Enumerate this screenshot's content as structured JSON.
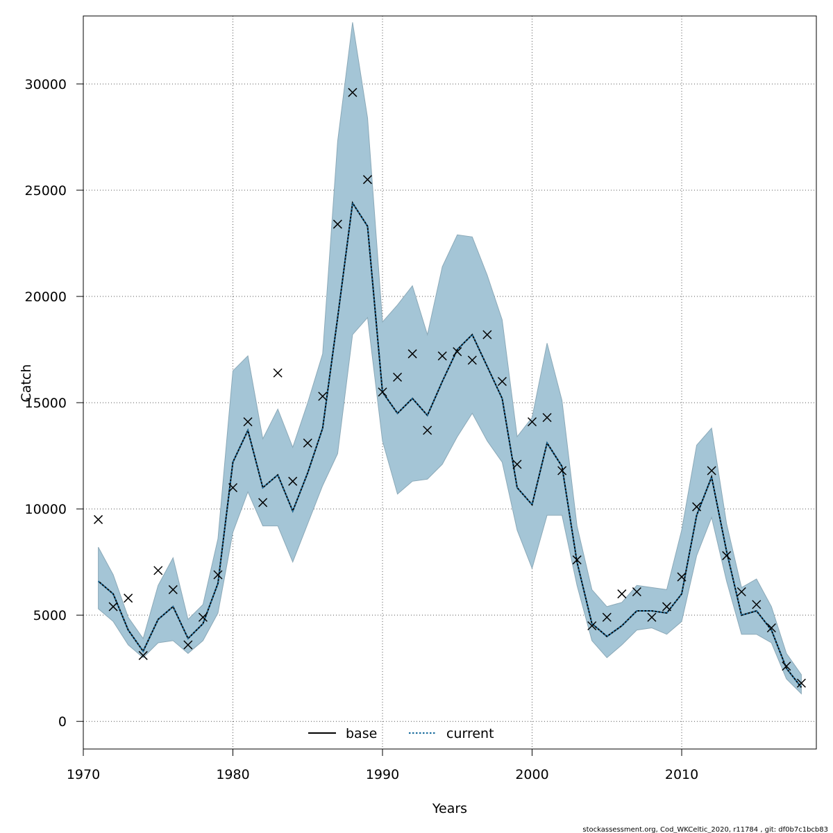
{
  "chart_data": {
    "type": "line",
    "xlabel": "Years",
    "ylabel": "Catch",
    "xlim": [
      1970,
      2019
    ],
    "ylim": [
      -1300,
      33200
    ],
    "x_ticks": [
      1970,
      1980,
      1990,
      2000,
      2010
    ],
    "y_ticks": [
      0,
      5000,
      10000,
      15000,
      20000,
      25000,
      30000
    ],
    "grid": true,
    "legend_position": "bottom-center",
    "legend": [
      {
        "label": "base",
        "style": "solid",
        "color": "#000000"
      },
      {
        "label": "current",
        "style": "dotted",
        "color": "#1f6f9f"
      }
    ],
    "colors": {
      "band": "#a4c5d6",
      "band_edge": "#8ba9b8",
      "grid": "#555555"
    },
    "x": [
      1971,
      1972,
      1973,
      1974,
      1975,
      1976,
      1977,
      1978,
      1979,
      1980,
      1981,
      1982,
      1983,
      1984,
      1985,
      1986,
      1987,
      1988,
      1989,
      1990,
      1991,
      1992,
      1993,
      1994,
      1995,
      1996,
      1997,
      1998,
      1999,
      2000,
      2001,
      2002,
      2003,
      2004,
      2005,
      2006,
      2007,
      2008,
      2009,
      2010,
      2011,
      2012,
      2013,
      2014,
      2015,
      2016,
      2017,
      2018
    ],
    "series": [
      {
        "name": "current",
        "values": [
          6600,
          6000,
          4300,
          3300,
          4800,
          5400,
          3900,
          4600,
          6500,
          12200,
          13700,
          11000,
          11600,
          9900,
          11700,
          13800,
          19000,
          24400,
          23300,
          15500,
          14500,
          15200,
          14400,
          16000,
          17500,
          18200,
          16700,
          15200,
          11000,
          10200,
          13100,
          12000,
          7500,
          4600,
          4000,
          4500,
          5200,
          5200,
          5100,
          6000,
          9700,
          11500,
          8000,
          5000,
          5200,
          4300,
          2500,
          1600
        ]
      }
    ],
    "band": {
      "lower": [
        5300,
        4700,
        3600,
        3000,
        3700,
        3800,
        3200,
        3800,
        5100,
        8900,
        10800,
        9200,
        9200,
        7500,
        9300,
        11100,
        12600,
        18200,
        19000,
        13200,
        10700,
        11300,
        11400,
        12100,
        13400,
        14500,
        13200,
        12200,
        9000,
        7200,
        9700,
        9700,
        6400,
        3800,
        3000,
        3600,
        4300,
        4400,
        4100,
        4700,
        7800,
        9600,
        6600,
        4100,
        4100,
        3700,
        2000,
        1300
      ],
      "upper": [
        8200,
        6900,
        4900,
        3900,
        6400,
        7700,
        4800,
        5500,
        8600,
        16500,
        17200,
        13300,
        14700,
        12900,
        15000,
        17300,
        27300,
        32900,
        28400,
        18800,
        19600,
        20500,
        18200,
        21400,
        22900,
        22800,
        21000,
        18900,
        13400,
        14300,
        17800,
        15100,
        9200,
        6200,
        5400,
        5600,
        6400,
        6300,
        6200,
        9000,
        13000,
        13800,
        9300,
        6300,
        6700,
        5400,
        3200,
        2200
      ]
    },
    "observed": [
      9500,
      5400,
      5800,
      3100,
      7100,
      6200,
      3600,
      4900,
      6900,
      11000,
      14100,
      10300,
      16400,
      11300,
      13100,
      15300,
      23400,
      29600,
      25500,
      15500,
      16200,
      17300,
      13700,
      17200,
      17400,
      17000,
      18200,
      16000,
      12100,
      14100,
      14300,
      11800,
      7600,
      4500,
      4900,
      6000,
      6100,
      4900,
      5400,
      6800,
      10100,
      11800,
      7800,
      6100,
      5500,
      4400,
      2600,
      1800
    ]
  },
  "footer": {
    "note": "stockassessment.org, Cod_WKCeltic_2020, r11784 , git: df0b7c1bcb83"
  }
}
